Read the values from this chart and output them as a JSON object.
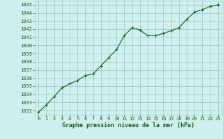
{
  "x": [
    0,
    1,
    2,
    3,
    4,
    5,
    6,
    7,
    8,
    9,
    10,
    11,
    12,
    13,
    14,
    15,
    16,
    17,
    18,
    19,
    20,
    21,
    22,
    23
  ],
  "y": [
    1031.8,
    1032.7,
    1033.7,
    1034.8,
    1035.3,
    1035.7,
    1036.3,
    1036.5,
    1037.5,
    1038.5,
    1039.5,
    1041.2,
    1042.2,
    1041.9,
    1041.2,
    1041.2,
    1041.5,
    1041.8,
    1042.2,
    1043.2,
    1044.1,
    1044.4,
    1044.8,
    1045.0
  ],
  "xlabel": "Graphe pression niveau de la mer (hPa)",
  "ylim_min": 1031.5,
  "ylim_max": 1045.5,
  "bg_color": "#d0f0f0",
  "grid_color": "#a0cccc",
  "line_color": "#1a5c1a",
  "marker_color": "#1a5c1a",
  "text_color": "#1a5c1a",
  "xlabel_color": "#1a5c1a",
  "font_name": "monospace",
  "ytick_labels": [
    "1032",
    "1033",
    "1034",
    "1035",
    "1036",
    "1037",
    "1038",
    "1039",
    "1040",
    "1041",
    "1042",
    "1043",
    "1044",
    "1045"
  ],
  "ytick_values": [
    1032,
    1033,
    1034,
    1035,
    1036,
    1037,
    1038,
    1039,
    1040,
    1041,
    1042,
    1043,
    1044,
    1045
  ]
}
